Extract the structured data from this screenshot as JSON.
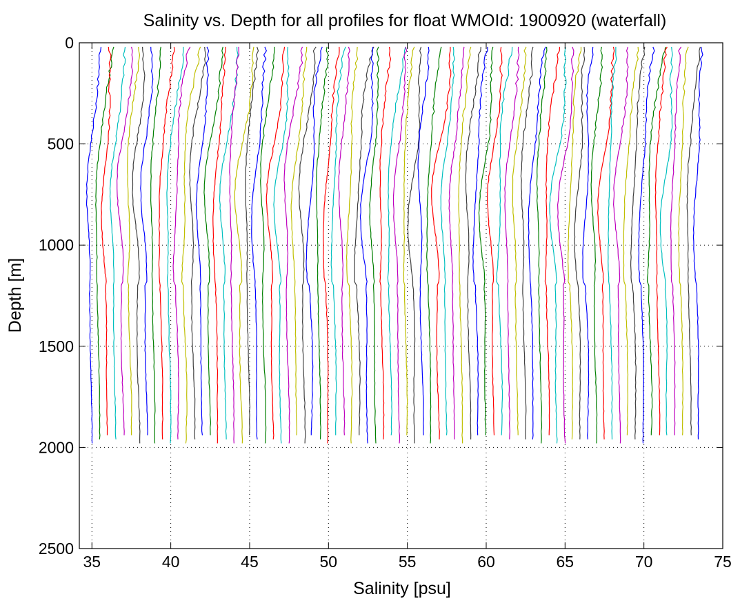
{
  "chart_data": {
    "type": "line",
    "title": "Salinity vs. Depth for all profiles for float WMOId: 1900920 (waterfall)",
    "xlabel": "Salinity [psu]",
    "ylabel": "Depth [m]",
    "xlim": [
      34.2,
      75
    ],
    "ylim": [
      0,
      2500
    ],
    "y_reversed": true,
    "grid": true,
    "x_ticks": [
      35,
      40,
      45,
      50,
      55,
      60,
      65,
      70,
      75
    ],
    "y_ticks": [
      0,
      500,
      1000,
      1500,
      2000,
      2500
    ],
    "colors": [
      "#0000ff",
      "#007f00",
      "#ff0000",
      "#00bfbf",
      "#bf00bf",
      "#bfbf00",
      "#3f3f3f"
    ],
    "waterfall_offset_per_profile": 0.5,
    "profile_count": 78,
    "first_profile": {
      "depth": [
        0,
        100,
        200,
        300,
        400,
        500,
        600,
        700,
        800,
        900,
        1000,
        1200,
        1400,
        1600,
        1800,
        1960
      ],
      "salinity": [
        35.5,
        35.4,
        35.3,
        35.2,
        35.1,
        35.0,
        34.85,
        34.75,
        34.7,
        34.72,
        34.76,
        34.84,
        34.9,
        34.94,
        34.97,
        34.98
      ]
    },
    "last_profile_start_salinity": 74.0
  }
}
